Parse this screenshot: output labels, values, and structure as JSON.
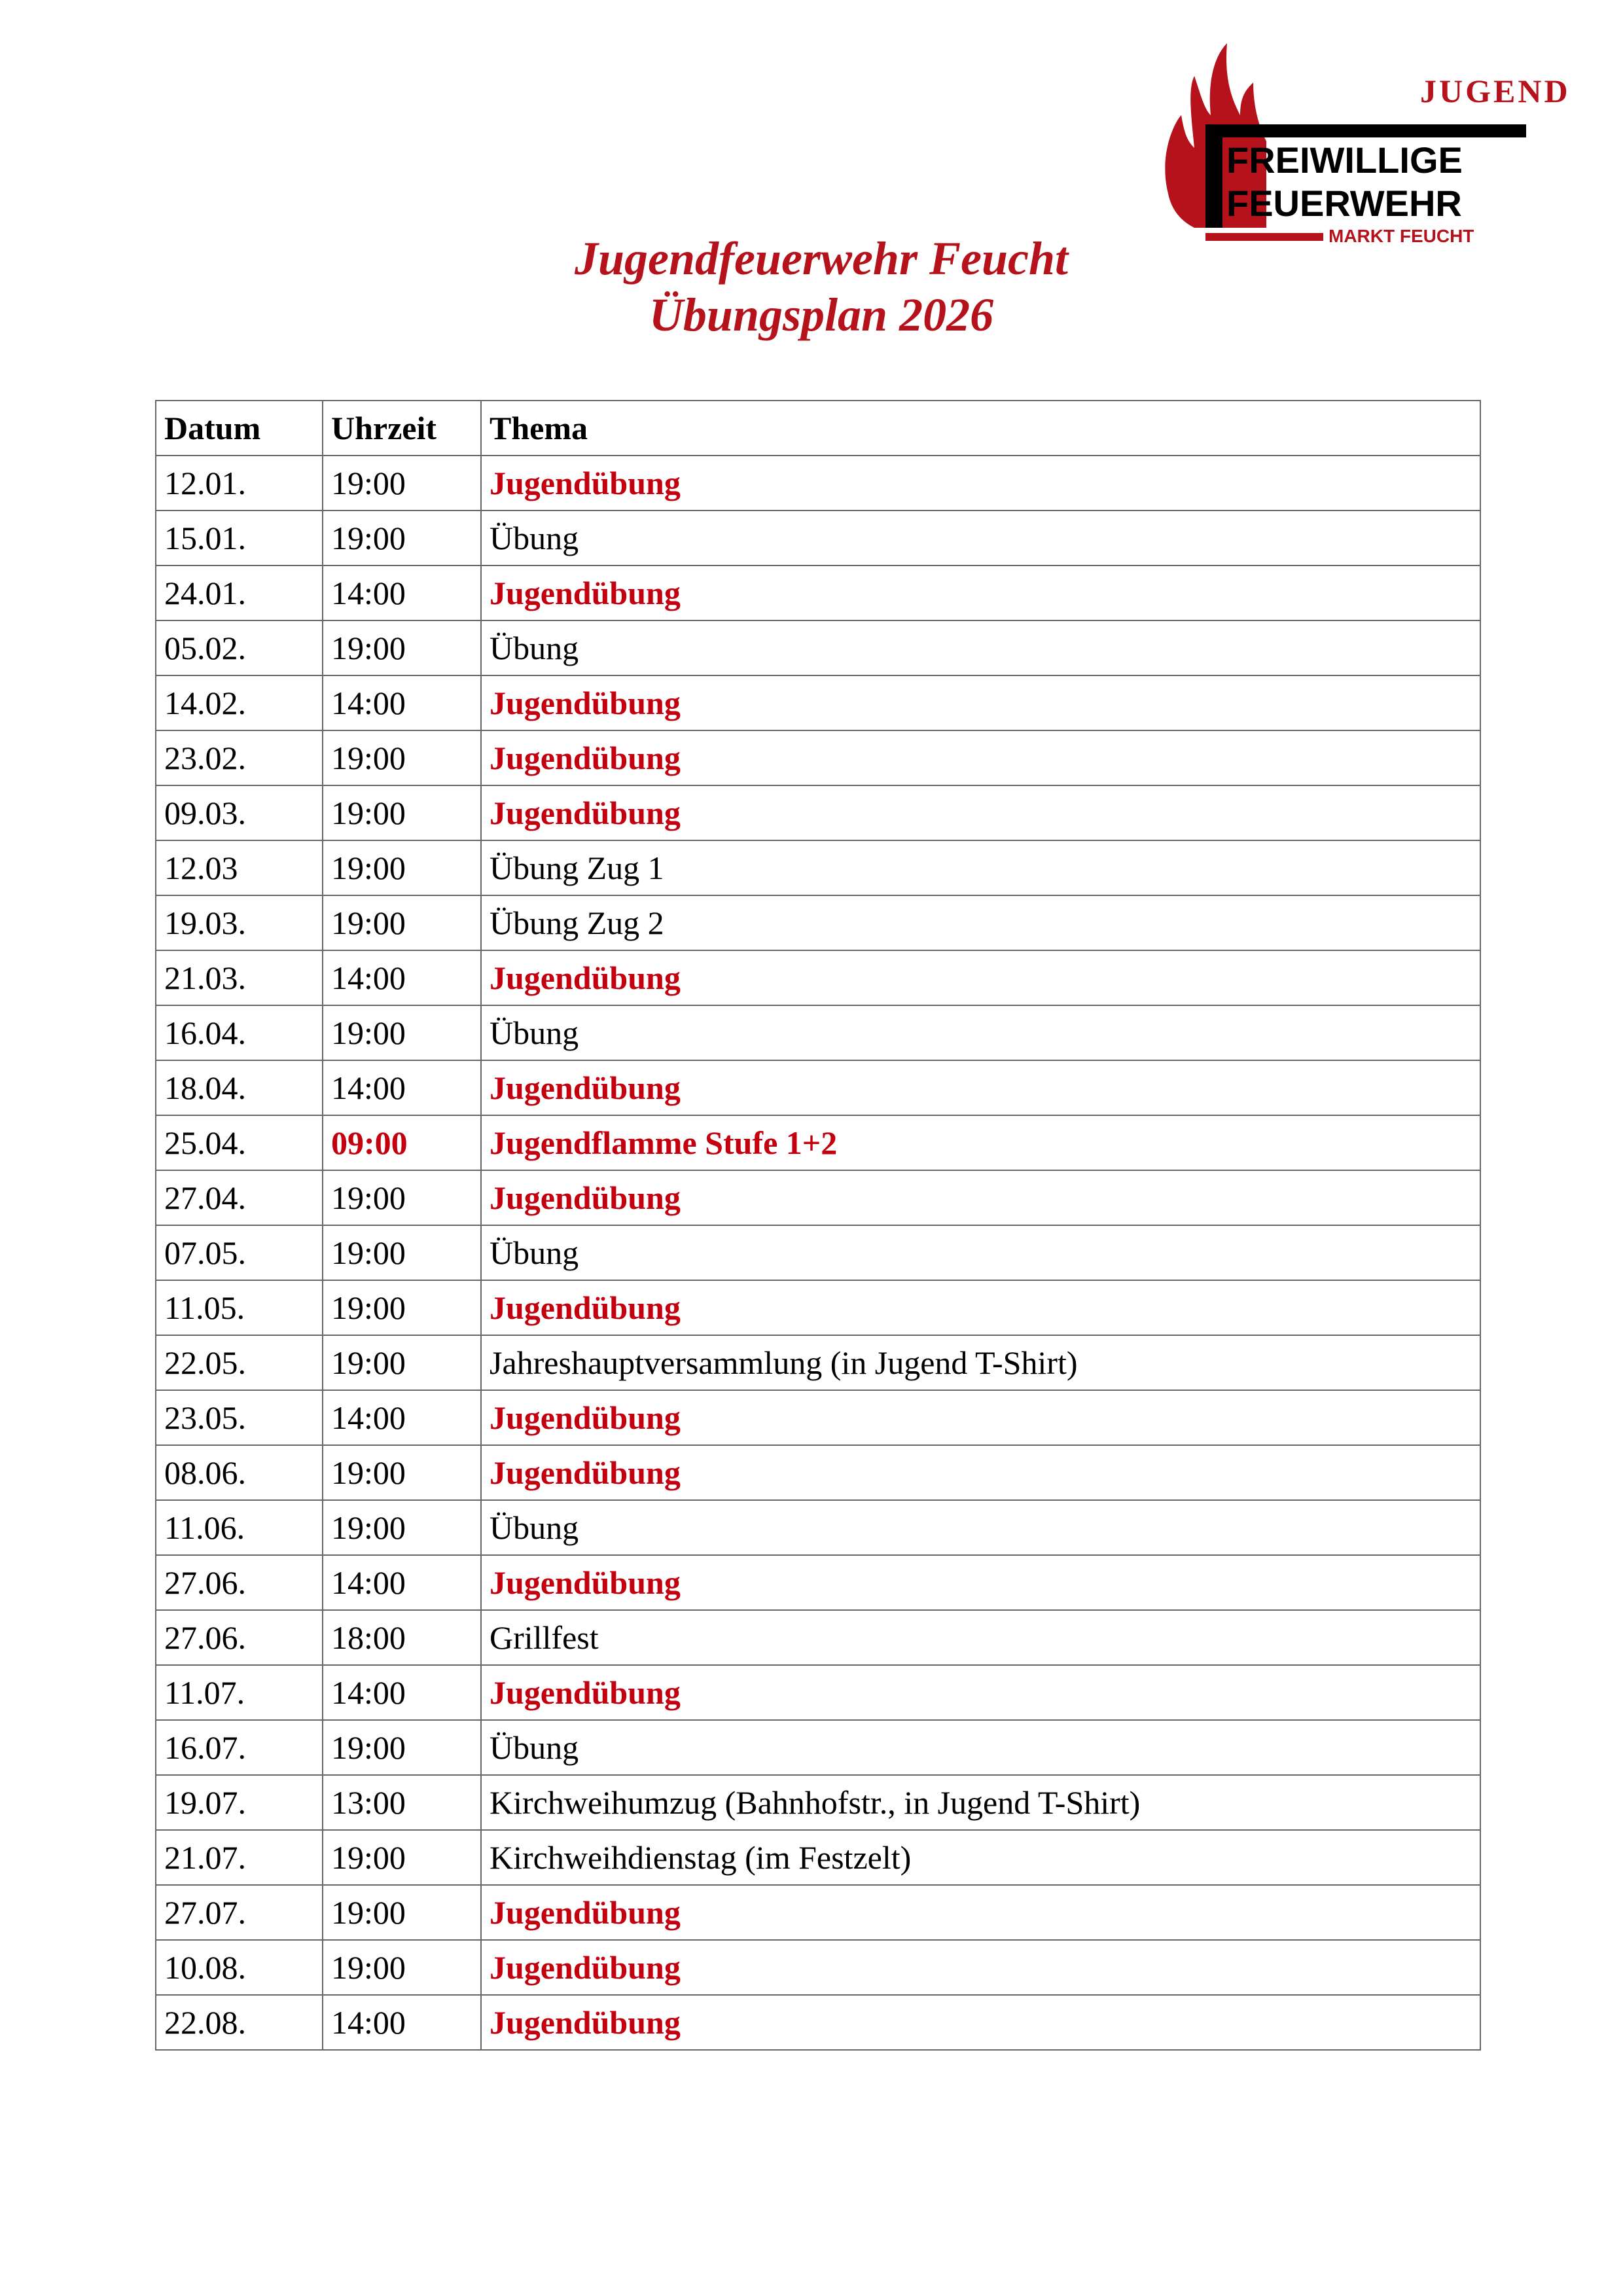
{
  "logo": {
    "top_text": "JUGEND",
    "line1": "FREIWILLIGE",
    "line2": "FEUERWEHR",
    "line3": "MARKT FEUCHT",
    "colors": {
      "red": "#b5121b",
      "black": "#000000"
    }
  },
  "title": {
    "line1": "Jugendfeuerwehr Feucht",
    "line2": "Übungsplan 2026"
  },
  "accent_color": "#c4000f",
  "table": {
    "headers": [
      "Datum",
      "Uhrzeit",
      "Thema"
    ],
    "rows": [
      {
        "date": "12.01.",
        "time": "19:00",
        "topic": "Jugendübung",
        "topic_red": true
      },
      {
        "date": "15.01.",
        "time": "19:00",
        "topic": "Übung"
      },
      {
        "date": "24.01.",
        "time": "14:00",
        "topic": "Jugendübung",
        "topic_red": true
      },
      {
        "date": "05.02.",
        "time": "19:00",
        "topic": "Übung"
      },
      {
        "date": "14.02.",
        "time": "14:00",
        "topic": "Jugendübung",
        "topic_red": true
      },
      {
        "date": "23.02.",
        "time": "19:00",
        "topic": "Jugendübung",
        "topic_red": true
      },
      {
        "date": "09.03.",
        "time": "19:00",
        "topic": "Jugendübung",
        "topic_red": true
      },
      {
        "date": "12.03",
        "time": "19:00",
        "topic": "Übung Zug 1"
      },
      {
        "date": "19.03.",
        "time": "19:00",
        "topic": "Übung Zug 2"
      },
      {
        "date": "21.03.",
        "time": "14:00",
        "topic": "Jugendübung",
        "topic_red": true
      },
      {
        "date": "16.04.",
        "time": "19:00",
        "topic": "Übung"
      },
      {
        "date": "18.04.",
        "time": "14:00",
        "topic": "Jugendübung",
        "topic_red": true
      },
      {
        "date": "25.04.",
        "time": "09:00",
        "time_red": true,
        "topic": "Jugendflamme  Stufe 1+2",
        "topic_red": true
      },
      {
        "date": "27.04.",
        "time": "19:00",
        "topic": "Jugendübung",
        "topic_red": true
      },
      {
        "date": "07.05.",
        "time": "19:00",
        "topic": "Übung"
      },
      {
        "date": "11.05.",
        "time": "19:00",
        "topic": "Jugendübung",
        "topic_red": true
      },
      {
        "date": "22.05.",
        "time": "19:00",
        "topic": "Jahreshauptversammlung (in Jugend T-Shirt)"
      },
      {
        "date": "23.05.",
        "time": "14:00",
        "topic": "Jugendübung",
        "topic_red": true
      },
      {
        "date": "08.06.",
        "time": "19:00",
        "topic": "Jugendübung",
        "topic_red": true
      },
      {
        "date": "11.06.",
        "time": "19:00",
        "topic": "Übung"
      },
      {
        "date": "27.06.",
        "time": "14:00",
        "topic": "Jugendübung",
        "topic_red": true
      },
      {
        "date": "27.06.",
        "time": "18:00",
        "topic": "Grillfest"
      },
      {
        "date": "11.07.",
        "time": "14:00",
        "topic": "Jugendübung",
        "topic_red": true
      },
      {
        "date": "16.07.",
        "time": "19:00",
        "topic": "Übung"
      },
      {
        "date": "19.07.",
        "time": "13:00",
        "topic": "Kirchweihumzug (Bahnhofstr., in Jugend T-Shirt)"
      },
      {
        "date": "21.07.",
        "time": "19:00",
        "topic": "Kirchweihdienstag (im Festzelt)"
      },
      {
        "date": "27.07.",
        "time": "19:00",
        "topic": "Jugendübung",
        "topic_red": true
      },
      {
        "date": "10.08.",
        "time": "19:00",
        "topic": "Jugendübung",
        "topic_red": true
      },
      {
        "date": "22.08.",
        "time": "14:00",
        "topic": "Jugendübung",
        "topic_red": true
      }
    ]
  }
}
